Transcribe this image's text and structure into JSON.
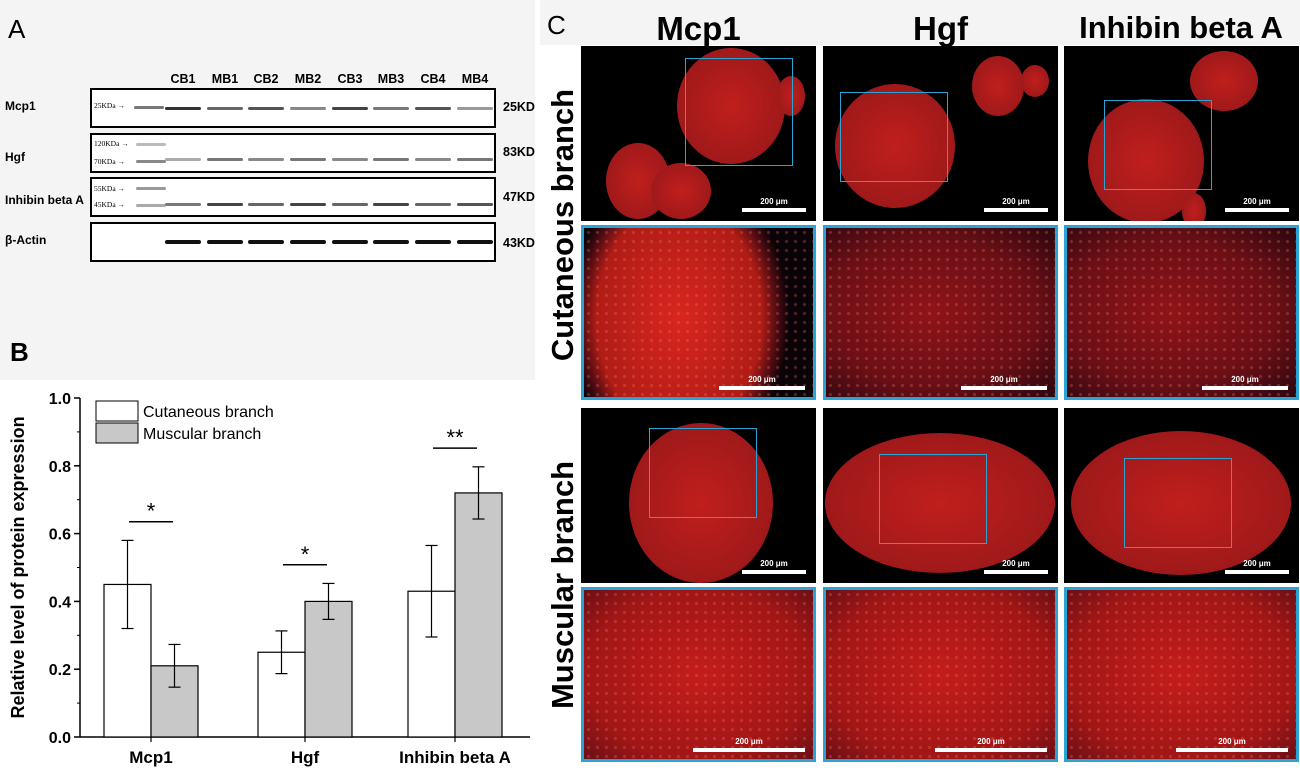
{
  "panels": {
    "a": "A",
    "b": "B",
    "c": "C"
  },
  "blot": {
    "lanes": [
      "CB1",
      "MB1",
      "CB2",
      "MB2",
      "CB3",
      "MB3",
      "CB4",
      "MB4"
    ],
    "rows": [
      {
        "label": "Mcp1",
        "kd": "25KD",
        "markers": [
          "25KDa"
        ]
      },
      {
        "label": "Hgf",
        "kd": "83KD",
        "markers": [
          "120KDa",
          "70KDa"
        ]
      },
      {
        "label": "Inhibin beta A",
        "kd": "47KD",
        "markers": [
          "55KDa",
          "45KDa"
        ]
      },
      {
        "label": "β-Actin",
        "kd": "43KD",
        "markers": []
      }
    ]
  },
  "chart_data": {
    "type": "bar",
    "categories": [
      "Mcp1",
      "Hgf",
      "Inhibin beta A"
    ],
    "series": [
      {
        "name": "Cutaneous branch",
        "values": [
          0.45,
          0.25,
          0.43
        ],
        "errors": [
          0.13,
          0.063,
          0.135
        ],
        "color": "#ffffff"
      },
      {
        "name": "Muscular branch",
        "values": [
          0.21,
          0.4,
          0.72
        ],
        "errors": [
          0.063,
          0.053,
          0.077
        ],
        "color": "#c8c8c8"
      }
    ],
    "significance": [
      "*",
      "*",
      "**"
    ],
    "ylabel": "Relative level of protein expression",
    "xlabel": "",
    "ylim": [
      0.0,
      1.0
    ],
    "yticks": [
      "0.0",
      "0.2",
      "0.4",
      "0.6",
      "0.8",
      "1.0"
    ],
    "legend_position": "top-left"
  },
  "micrographs": {
    "columns": [
      "Mcp1",
      "Hgf",
      "Inhibin beta A"
    ],
    "rows": [
      "Cutaneous branch",
      "Muscular branch"
    ],
    "scale_label": "200 μm"
  }
}
